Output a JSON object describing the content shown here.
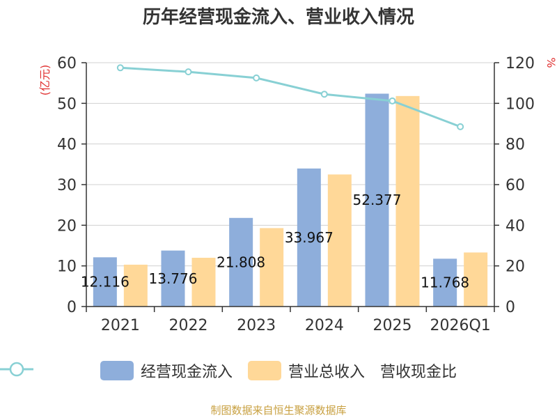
{
  "title": "历年经营现金流入、营业收入情况",
  "source": "制图数据来自恒生聚源数据库",
  "colors": {
    "cash_inflow": "#8eaedb",
    "revenue": "#ffd898",
    "ratio": "#88d0d4",
    "axis_unit": "#e03030",
    "grid": "#d0d0d0"
  },
  "chart_data": {
    "type": "bar",
    "categories": [
      "2021",
      "2022",
      "2023",
      "2024",
      "2025",
      "2026Q1"
    ],
    "series": [
      {
        "name": "经营现金流入",
        "type": "bar",
        "axis": "left",
        "values": [
          12.116,
          13.776,
          21.808,
          33.967,
          52.377,
          11.768
        ],
        "labels": [
          "12.116",
          "13.776",
          "21.808",
          "33.967",
          "52.377",
          "11.768"
        ]
      },
      {
        "name": "营业总收入",
        "type": "bar",
        "axis": "left",
        "values": [
          10.3,
          12.0,
          19.3,
          32.5,
          51.8,
          13.3
        ]
      },
      {
        "name": "营收现金比",
        "type": "line",
        "axis": "right",
        "values": [
          117.5,
          115.5,
          112.5,
          104.5,
          101.2,
          88.5
        ]
      }
    ],
    "y_left": {
      "unit": "(亿元)",
      "min": 0,
      "max": 60,
      "ticks": [
        0,
        10,
        20,
        30,
        40,
        50,
        60
      ]
    },
    "y_right": {
      "unit": "%",
      "min": 0,
      "max": 120,
      "ticks": [
        0,
        20,
        40,
        60,
        80,
        100,
        120
      ]
    },
    "grid": true,
    "legend_position": "bottom"
  }
}
